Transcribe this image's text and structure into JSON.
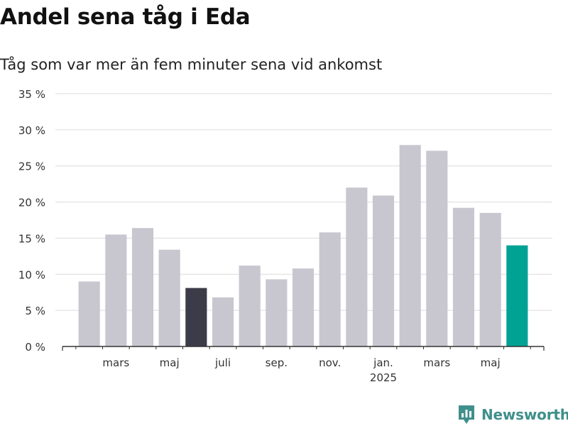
{
  "header": {
    "title": "Andel sena tåg i Eda",
    "subtitle": "Tåg som var mer än fem minuter sena vid ankomst"
  },
  "brand": {
    "name": "Newsworthy",
    "logo_icon": "newsworthy-logo-icon",
    "color": "#3f8f8b"
  },
  "colors": {
    "bar_default": "#c8c7d0",
    "bar_highlight": "#3c3b48",
    "bar_latest": "#00a294",
    "grid": "#dcdcdc",
    "axis": "#333333"
  },
  "chart_data": {
    "type": "bar",
    "categories": [
      "2024-02",
      "2024-03",
      "2024-04",
      "2024-05",
      "2024-06",
      "2024-07",
      "2024-08",
      "2024-09",
      "2024-10",
      "2024-11",
      "2024-12",
      "2025-01",
      "2025-02",
      "2025-03",
      "2025-04",
      "2025-05",
      "2025-06"
    ],
    "values": [
      9.0,
      15.5,
      16.4,
      13.4,
      8.1,
      6.8,
      11.2,
      9.3,
      10.8,
      15.8,
      22.0,
      20.9,
      27.9,
      27.1,
      19.2,
      18.5,
      14.0
    ],
    "highlight": {
      "2024-06": "bar_highlight",
      "2025-06": "bar_latest"
    },
    "ylim": [
      0,
      35
    ],
    "yticks": [
      {
        "value": 0,
        "label": "0 %"
      },
      {
        "value": 5,
        "label": "5 %"
      },
      {
        "value": 10,
        "label": "10 %"
      },
      {
        "value": 15,
        "label": "15 %"
      },
      {
        "value": 20,
        "label": "20 %"
      },
      {
        "value": 25,
        "label": "25 %"
      },
      {
        "value": 30,
        "label": "30 %"
      },
      {
        "value": 35,
        "label": "35 %"
      }
    ],
    "xticks": [
      {
        "at": "2024-03",
        "label": "mars"
      },
      {
        "at": "2024-05",
        "label": "maj"
      },
      {
        "at": "2024-07",
        "label": "juli"
      },
      {
        "at": "2024-09",
        "label": "sep."
      },
      {
        "at": "2024-11",
        "label": "nov."
      },
      {
        "at": "2025-01",
        "label": "jan.",
        "sublabel": "2025"
      },
      {
        "at": "2025-03",
        "label": "mars"
      },
      {
        "at": "2025-05",
        "label": "maj"
      }
    ],
    "grid": true
  }
}
